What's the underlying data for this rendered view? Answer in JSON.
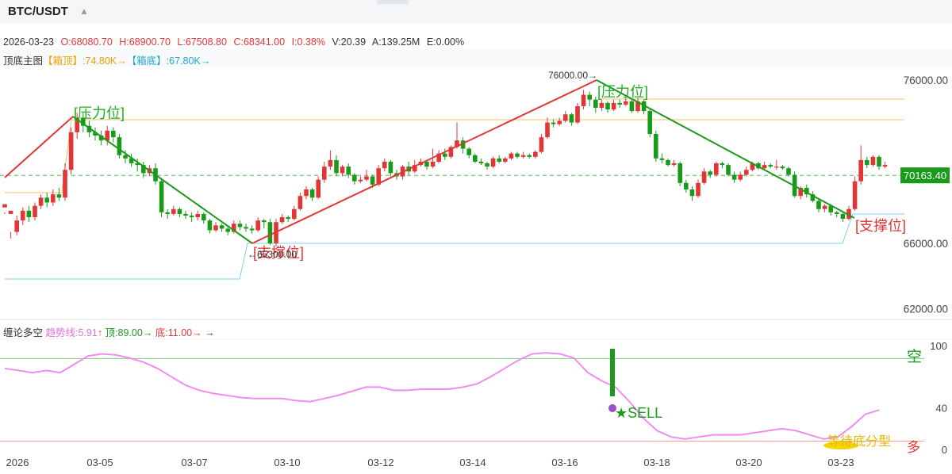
{
  "header": {
    "symbol": "BTC/USDT",
    "symbol_arrow": "▲"
  },
  "ohlc": {
    "date": "2026-03-23",
    "open": "O:68080.70",
    "high": "H:68900.70",
    "low": "L:67508.80",
    "close": "C:68341.00",
    "change": "I:0.38%",
    "volume": "V:20.39",
    "amount": "A:139.25M",
    "e": "E:0.00%"
  },
  "main_indicator": {
    "name": "顶底主图",
    "box_top_label": "【箱顶】",
    "box_top_value": ":74.80K→",
    "box_bottom_label": "【箱底】",
    "box_bottom_value": ":67.80K→"
  },
  "sub_indicator": {
    "name": "缠论多空",
    "trend_label": "趋势线:5.91",
    "trend_arrow": "↑",
    "top_label": "顶:89.00→",
    "bottom_label": "底:11.00→",
    "faint": "",
    "arrow": "→"
  },
  "colors": {
    "up": "#e23636",
    "down": "#1a9a1a",
    "gold": "#f0c060",
    "cyan": "#7dd0ee",
    "pink": "#f08cf0"
  },
  "chart_data": {
    "type": "candlestick",
    "y_ticks": [
      "76000.00",
      "66000.00",
      "62000.00"
    ],
    "y_range": [
      60600,
      77000
    ],
    "last_price_label": "70163.40",
    "last_price": 70163.4,
    "x_ticks": [
      "2026",
      "03-05",
      "03-07",
      "03-10",
      "03-12",
      "03-14",
      "03-16",
      "03-18",
      "03-20",
      "03-23"
    ],
    "candles": [
      [
        68200,
        68400,
        67900,
        67800
      ],
      [
        67800,
        68000,
        66700,
        66300
      ],
      [
        66700,
        67400,
        67700,
        66500
      ],
      [
        67400,
        68000,
        68200,
        67100
      ],
      [
        68000,
        67600,
        68300,
        67300
      ],
      [
        67600,
        68300,
        68500,
        67400
      ],
      [
        68300,
        68800,
        69000,
        68100
      ],
      [
        68800,
        68500,
        69100,
        68200
      ],
      [
        68500,
        69000,
        69300,
        68300
      ],
      [
        69000,
        68800,
        69400,
        68600
      ],
      [
        68800,
        70500,
        70900,
        68600
      ],
      [
        70500,
        72800,
        73100,
        70200
      ],
      [
        72800,
        73700,
        74000,
        72400
      ],
      [
        73700,
        73200,
        74000,
        72800
      ],
      [
        73200,
        72800,
        73500,
        72500
      ],
      [
        72800,
        72600,
        73100,
        72300
      ],
      [
        72600,
        72300,
        72900,
        72000
      ],
      [
        72300,
        72900,
        73200,
        72000
      ],
      [
        72900,
        72500,
        73100,
        72200
      ],
      [
        72500,
        71400,
        72700,
        71200
      ],
      [
        71400,
        71200,
        71700,
        70900
      ],
      [
        71200,
        70900,
        71500,
        70700
      ],
      [
        70900,
        70800,
        71200,
        70400
      ],
      [
        70800,
        70300,
        71000,
        70000
      ],
      [
        70300,
        70600,
        70800,
        70100
      ],
      [
        70600,
        69800,
        70900,
        69600
      ],
      [
        69800,
        67900,
        70000,
        67600
      ],
      [
        67900,
        67800,
        68100,
        67500
      ],
      [
        67800,
        68100,
        68300,
        67700
      ],
      [
        68100,
        67800,
        68200,
        67600
      ],
      [
        67800,
        67700,
        68000,
        67500
      ],
      [
        67700,
        67600,
        67900,
        67300
      ],
      [
        67600,
        67800,
        68000,
        67400
      ],
      [
        67800,
        67400,
        67900,
        67200
      ],
      [
        67400,
        66800,
        67500,
        66600
      ],
      [
        66800,
        67100,
        67300,
        66700
      ],
      [
        67100,
        66900,
        67200,
        66700
      ],
      [
        66900,
        66700,
        67100,
        66500
      ],
      [
        66700,
        67200,
        67400,
        66600
      ],
      [
        67200,
        67000,
        67400,
        66800
      ],
      [
        67000,
        66900,
        67200,
        66700
      ],
      [
        66900,
        66800,
        67100,
        66600
      ],
      [
        66800,
        67400,
        67600,
        66700
      ],
      [
        67400,
        67300,
        67500,
        66900
      ],
      [
        67300,
        66000,
        67500,
        65900
      ],
      [
        66000,
        67300,
        67500,
        65800
      ],
      [
        67300,
        67600,
        67800,
        67200
      ],
      [
        67600,
        67500,
        67700,
        67300
      ],
      [
        67500,
        68100,
        68300,
        67400
      ],
      [
        68100,
        68900,
        69100,
        68000
      ],
      [
        68900,
        69300,
        69500,
        68700
      ],
      [
        69300,
        68800,
        69400,
        68600
      ],
      [
        68800,
        69900,
        70100,
        68700
      ],
      [
        69900,
        70700,
        71000,
        69700
      ],
      [
        70700,
        71100,
        71700,
        70500
      ],
      [
        71100,
        70300,
        71400,
        70100
      ],
      [
        70300,
        70700,
        70800,
        70100
      ],
      [
        70700,
        70200,
        70900,
        70000
      ],
      [
        70200,
        69800,
        70300,
        69600
      ],
      [
        69800,
        69900,
        70100,
        69700
      ],
      [
        69900,
        70100,
        70500,
        69800
      ],
      [
        70100,
        69600,
        70200,
        69400
      ],
      [
        69600,
        70600,
        70800,
        69500
      ],
      [
        70600,
        71000,
        71200,
        70400
      ],
      [
        71000,
        70300,
        71100,
        70100
      ],
      [
        70300,
        70100,
        70500,
        69900
      ],
      [
        70100,
        70700,
        70800,
        69900
      ],
      [
        70700,
        70400,
        71000,
        70200
      ],
      [
        70400,
        70800,
        71100,
        70300
      ],
      [
        70800,
        71000,
        71200,
        70700
      ],
      [
        71000,
        70700,
        71100,
        70500
      ],
      [
        70700,
        71000,
        71800,
        70600
      ],
      [
        71000,
        71500,
        71700,
        70900
      ],
      [
        71500,
        71300,
        71800,
        71100
      ],
      [
        71300,
        71900,
        72000,
        71200
      ],
      [
        71900,
        72300,
        73400,
        71800
      ],
      [
        72300,
        71800,
        72500,
        71500
      ],
      [
        71800,
        71400,
        71900,
        71200
      ],
      [
        71400,
        71000,
        71500,
        70900
      ],
      [
        71000,
        70900,
        71200,
        70800
      ],
      [
        70900,
        70700,
        71000,
        70500
      ],
      [
        70700,
        71200,
        71300,
        70600
      ],
      [
        71200,
        71000,
        71400,
        70900
      ],
      [
        71000,
        71200,
        71300,
        70900
      ],
      [
        71200,
        71500,
        71600,
        71100
      ],
      [
        71500,
        71300,
        71600,
        71200
      ],
      [
        71300,
        71400,
        71600,
        71200
      ],
      [
        71400,
        71300,
        71500,
        71200
      ],
      [
        71300,
        71600,
        71700,
        71200
      ],
      [
        71600,
        72500,
        72700,
        71500
      ],
      [
        72500,
        73400,
        73700,
        72400
      ],
      [
        73400,
        73300,
        73600,
        73100
      ],
      [
        73300,
        73500,
        73700,
        73200
      ],
      [
        73500,
        73900,
        74100,
        73400
      ],
      [
        73900,
        73400,
        74000,
        73200
      ],
      [
        73400,
        74400,
        74600,
        73300
      ],
      [
        74400,
        75100,
        75400,
        74200
      ],
      [
        75100,
        74800,
        75300,
        74400
      ],
      [
        74800,
        74300,
        75000,
        74000
      ],
      [
        74300,
        74600,
        74800,
        74100
      ],
      [
        74600,
        74200,
        74700,
        74000
      ],
      [
        74200,
        74600,
        74800,
        74100
      ],
      [
        74600,
        74500,
        74800,
        74300
      ],
      [
        74500,
        74700,
        74900,
        74400
      ],
      [
        74700,
        74100,
        74800,
        74000
      ],
      [
        74100,
        74700,
        74900,
        74000
      ],
      [
        74700,
        74100,
        74800,
        73900
      ],
      [
        74100,
        72700,
        74300,
        72500
      ],
      [
        72700,
        71200,
        72900,
        71000
      ],
      [
        71200,
        71100,
        71500,
        70900
      ],
      [
        71100,
        70800,
        71200,
        70700
      ],
      [
        70800,
        70900,
        71100,
        70700
      ],
      [
        70900,
        69700,
        71000,
        69500
      ],
      [
        69700,
        69300,
        69900,
        69100
      ],
      [
        69300,
        68900,
        69500,
        68600
      ],
      [
        68900,
        69700,
        69900,
        68800
      ],
      [
        69700,
        70400,
        70600,
        69600
      ],
      [
        70400,
        70200,
        70500,
        70000
      ],
      [
        70200,
        70900,
        71000,
        70100
      ],
      [
        70900,
        70800,
        71000,
        70600
      ],
      [
        70800,
        70200,
        70900,
        70100
      ],
      [
        70200,
        69900,
        70400,
        69700
      ],
      [
        69900,
        70200,
        70400,
        69800
      ],
      [
        70200,
        70500,
        70700,
        70100
      ],
      [
        70500,
        70900,
        71000,
        70400
      ],
      [
        70900,
        70600,
        71000,
        70500
      ],
      [
        70600,
        70800,
        71000,
        70500
      ],
      [
        70800,
        70700,
        70900,
        70600
      ],
      [
        70700,
        70700,
        71100,
        70500
      ],
      [
        70700,
        70600,
        70800,
        70500
      ],
      [
        70600,
        70200,
        70700,
        70100
      ],
      [
        70200,
        68900,
        70400,
        68800
      ],
      [
        68900,
        69400,
        69500,
        68700
      ],
      [
        69400,
        69000,
        69600,
        68800
      ],
      [
        69000,
        68600,
        69200,
        68500
      ],
      [
        68600,
        68100,
        68700,
        67900
      ],
      [
        68100,
        68300,
        68400,
        67900
      ],
      [
        68300,
        67900,
        68400,
        67700
      ],
      [
        67900,
        67800,
        68000,
        67600
      ],
      [
        67800,
        67500,
        67900,
        67300
      ],
      [
        67500,
        68100,
        68300,
        67400
      ],
      [
        68100,
        69800,
        70100,
        68000
      ],
      [
        69800,
        71100,
        72000,
        69600
      ],
      [
        71100,
        70800,
        71300,
        70600
      ],
      [
        70800,
        71300,
        71400,
        70700
      ],
      [
        71300,
        70700,
        71400,
        70500
      ],
      [
        70700,
        70800,
        71000,
        70600
      ]
    ],
    "resistance_line": {
      "value": 74800
    },
    "support_line": {
      "value": 67800
    },
    "trend_label_peak": "76000.00→",
    "trend_label_low": "←65300.00",
    "annotations": {
      "pressure1": "[压力位]",
      "pressure2": "[压力位]",
      "support1": "[支撑位]",
      "support2": "[支撑位]"
    },
    "sub_panel": {
      "y_ticks": [
        "100",
        "40",
        "0"
      ],
      "top_level": 89,
      "bottom_level": 11,
      "line_values": [
        78,
        76,
        74,
        76,
        74,
        82,
        90,
        92,
        91,
        88,
        84,
        78,
        70,
        62,
        57,
        54,
        52,
        50,
        49,
        49,
        49,
        47,
        46,
        49,
        52,
        56,
        60,
        60,
        57,
        57,
        58,
        58,
        58,
        60,
        63,
        70,
        78,
        86,
        92,
        93,
        92,
        88,
        74,
        66,
        60,
        46,
        30,
        18,
        12,
        10,
        12,
        14,
        14,
        14,
        16,
        18,
        20,
        18,
        14,
        10,
        12,
        22,
        34,
        38
      ],
      "sell_label": "★SELL",
      "short_label": "空",
      "long_label": "多",
      "waiting_label": "等待底分型"
    }
  }
}
